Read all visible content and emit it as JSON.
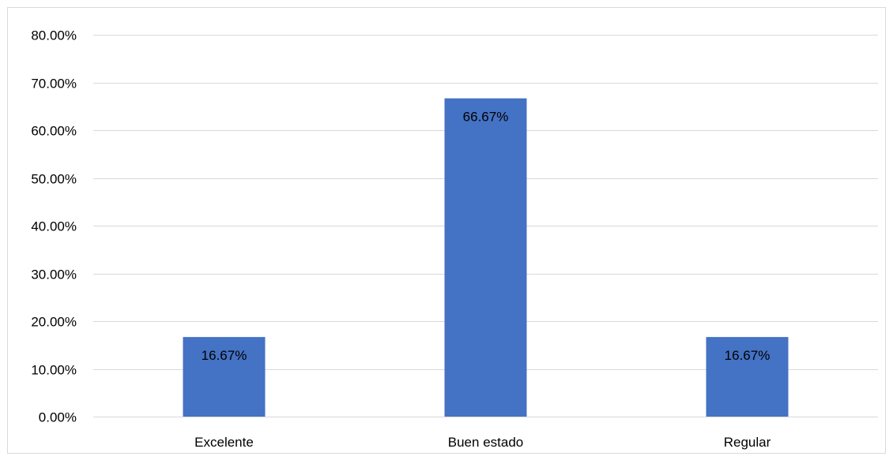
{
  "chart_data": {
    "type": "bar",
    "title": "",
    "xlabel": "",
    "ylabel": "",
    "categories": [
      "Excelente",
      "Buen estado",
      "Regular"
    ],
    "values": [
      16.67,
      66.67,
      16.67
    ],
    "value_labels": [
      "16.67%",
      "66.67%",
      "16.67%"
    ],
    "ylim": [
      0,
      80
    ],
    "yticks": [
      0,
      10,
      20,
      30,
      40,
      50,
      60,
      70,
      80
    ],
    "ytick_labels": [
      "0.00%",
      "10.00%",
      "20.00%",
      "30.00%",
      "40.00%",
      "50.00%",
      "60.00%",
      "70.00%",
      "80.00%"
    ],
    "grid": true,
    "legend": "none",
    "bar_color": "#4472c4",
    "gridline_color": "#d9d9d9",
    "text_color": "#000000"
  }
}
